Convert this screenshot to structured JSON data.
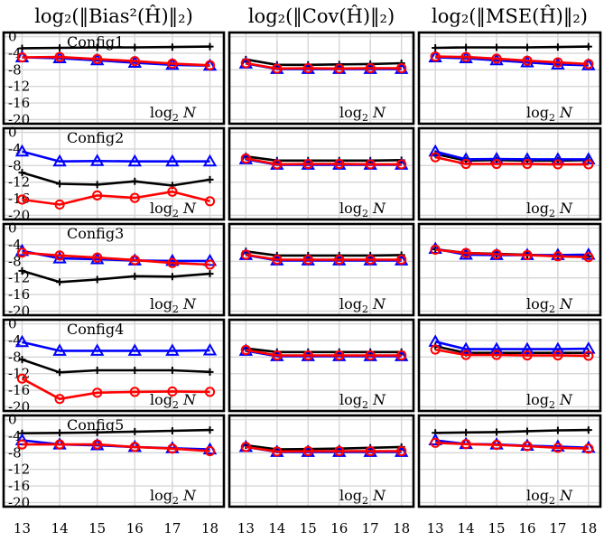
{
  "chart_data": {
    "type": "line",
    "column_titles": [
      "log₂(‖Bias²(Ĥ)‖₂)",
      "log₂(‖Cov(Ĥ)‖₂)",
      "log₂(‖MSE(Ĥ)‖₂)"
    ],
    "row_labels": [
      "Config1",
      "Config2",
      "Config3",
      "Config4",
      "Config5"
    ],
    "x": [
      13,
      14,
      15,
      16,
      17,
      18
    ],
    "xlim": [
      12.7,
      18.3
    ],
    "ylim": [
      -21,
      1
    ],
    "yticks": [
      0,
      -4,
      -8,
      -12,
      -16,
      -20
    ],
    "ytick_labels": [
      "0",
      "-4",
      "-8",
      "-12",
      "-16",
      "-20"
    ],
    "xtick_labels": [
      "13",
      "14",
      "15",
      "16",
      "17",
      "18"
    ],
    "axis_label": {
      "base": "log",
      "sub": "2",
      "var": "N"
    },
    "grid": true,
    "series_colors": {
      "black": "#000000",
      "blue": "#0000ff",
      "red": "#ff0000"
    },
    "series_markers": {
      "black": "plus",
      "blue": "triangle",
      "red": "circle"
    },
    "panels": [
      [
        {
          "black": [
            -2.8,
            -2.7,
            -2.6,
            -2.6,
            -2.5,
            -2.4
          ],
          "blue": [
            -5.0,
            -5.2,
            -5.7,
            -6.3,
            -6.8,
            -7.0
          ],
          "red": [
            -5.0,
            -4.9,
            -5.4,
            -5.9,
            -6.5,
            -6.9
          ]
        },
        {
          "black": [
            -5.5,
            -6.8,
            -6.8,
            -6.7,
            -6.6,
            -6.4
          ],
          "blue": [
            -6.5,
            -7.8,
            -7.8,
            -7.8,
            -7.8,
            -7.8
          ],
          "red": [
            -6.4,
            -7.7,
            -7.6,
            -7.7,
            -7.6,
            -7.6
          ]
        },
        {
          "black": [
            -2.7,
            -2.6,
            -2.6,
            -2.6,
            -2.5,
            -2.4
          ],
          "blue": [
            -5.0,
            -5.2,
            -5.7,
            -6.2,
            -6.7,
            -6.9
          ],
          "red": [
            -4.8,
            -4.9,
            -5.3,
            -5.8,
            -6.2,
            -6.6
          ]
        }
      ],
      [
        {
          "black": [
            -9.7,
            -12.4,
            -12.6,
            -11.8,
            -12.8,
            -11.4
          ],
          "blue": [
            -4.6,
            -7.0,
            -6.9,
            -7.0,
            -7.0,
            -7.0
          ],
          "red": [
            -16.2,
            -17.4,
            -15.2,
            -15.8,
            -14.3,
            -16.6
          ]
        },
        {
          "black": [
            -5.8,
            -6.8,
            -6.8,
            -6.8,
            -6.8,
            -6.7
          ],
          "blue": [
            -6.5,
            -7.8,
            -7.8,
            -7.8,
            -7.8,
            -7.8
          ],
          "red": [
            -6.3,
            -7.7,
            -7.6,
            -7.6,
            -7.7,
            -7.7
          ]
        },
        {
          "black": [
            -5.2,
            -6.8,
            -6.7,
            -6.8,
            -6.8,
            -6.7
          ],
          "blue": [
            -4.6,
            -6.5,
            -6.4,
            -6.5,
            -6.5,
            -6.5
          ],
          "red": [
            -6.0,
            -7.6,
            -7.6,
            -7.6,
            -7.7,
            -7.7
          ]
        }
      ],
      [
        {
          "black": [
            -10.3,
            -13.0,
            -12.4,
            -11.6,
            -11.7,
            -11.0
          ],
          "blue": [
            -5.5,
            -7.3,
            -7.5,
            -7.8,
            -7.9,
            -7.9
          ],
          "red": [
            -5.9,
            -6.6,
            -7.1,
            -7.7,
            -8.4,
            -8.8
          ]
        },
        {
          "black": [
            -5.6,
            -6.6,
            -6.6,
            -6.6,
            -6.6,
            -6.5
          ],
          "blue": [
            -6.5,
            -7.8,
            -7.8,
            -7.8,
            -7.8,
            -7.8
          ],
          "red": [
            -6.4,
            -7.6,
            -7.6,
            -7.6,
            -7.6,
            -7.6
          ]
        },
        {
          "black": [
            -5.1,
            -6.0,
            -6.2,
            -6.4,
            -6.7,
            -6.8
          ],
          "blue": [
            -5.0,
            -6.4,
            -6.5,
            -6.5,
            -6.5,
            -6.4
          ],
          "red": [
            -5.2,
            -6.0,
            -6.3,
            -6.5,
            -6.8,
            -7.0
          ]
        }
      ],
      [
        {
          "black": [
            -8.6,
            -11.7,
            -11.2,
            -11.2,
            -11.2,
            -11.6
          ],
          "blue": [
            -4.4,
            -6.5,
            -6.5,
            -6.5,
            -6.5,
            -6.4
          ],
          "red": [
            -13.2,
            -18.1,
            -16.6,
            -16.4,
            -16.3,
            -16.4
          ]
        },
        {
          "black": [
            -5.9,
            -6.8,
            -6.8,
            -6.8,
            -6.8,
            -6.8
          ],
          "blue": [
            -6.5,
            -7.8,
            -7.8,
            -7.8,
            -7.8,
            -7.8
          ],
          "red": [
            -6.3,
            -7.6,
            -7.6,
            -7.6,
            -7.6,
            -7.6
          ]
        },
        {
          "black": [
            -5.4,
            -7.0,
            -7.0,
            -7.0,
            -7.0,
            -7.0
          ],
          "blue": [
            -4.3,
            -6.1,
            -6.1,
            -6.1,
            -6.1,
            -6.0
          ],
          "red": [
            -6.2,
            -7.5,
            -7.5,
            -7.6,
            -7.6,
            -7.7
          ]
        }
      ],
      [
        {
          "black": [
            -3.3,
            -3.2,
            -3.1,
            -2.9,
            -2.7,
            -2.5
          ],
          "blue": [
            -5.0,
            -6.0,
            -6.2,
            -6.6,
            -6.9,
            -7.2
          ],
          "red": [
            -6.0,
            -6.0,
            -6.0,
            -6.6,
            -7.0,
            -7.6
          ]
        },
        {
          "black": [
            -6.2,
            -7.2,
            -7.1,
            -7.0,
            -6.8,
            -6.6
          ],
          "blue": [
            -6.6,
            -7.8,
            -7.8,
            -7.8,
            -7.8,
            -7.8
          ],
          "red": [
            -6.6,
            -7.7,
            -7.6,
            -7.6,
            -7.6,
            -7.6
          ]
        },
        {
          "black": [
            -3.2,
            -3.1,
            -3.0,
            -2.8,
            -2.6,
            -2.5
          ],
          "blue": [
            -5.0,
            -5.9,
            -6.0,
            -6.3,
            -6.5,
            -6.8
          ],
          "red": [
            -5.6,
            -5.9,
            -6.1,
            -6.4,
            -6.8,
            -7.0
          ]
        }
      ]
    ]
  }
}
